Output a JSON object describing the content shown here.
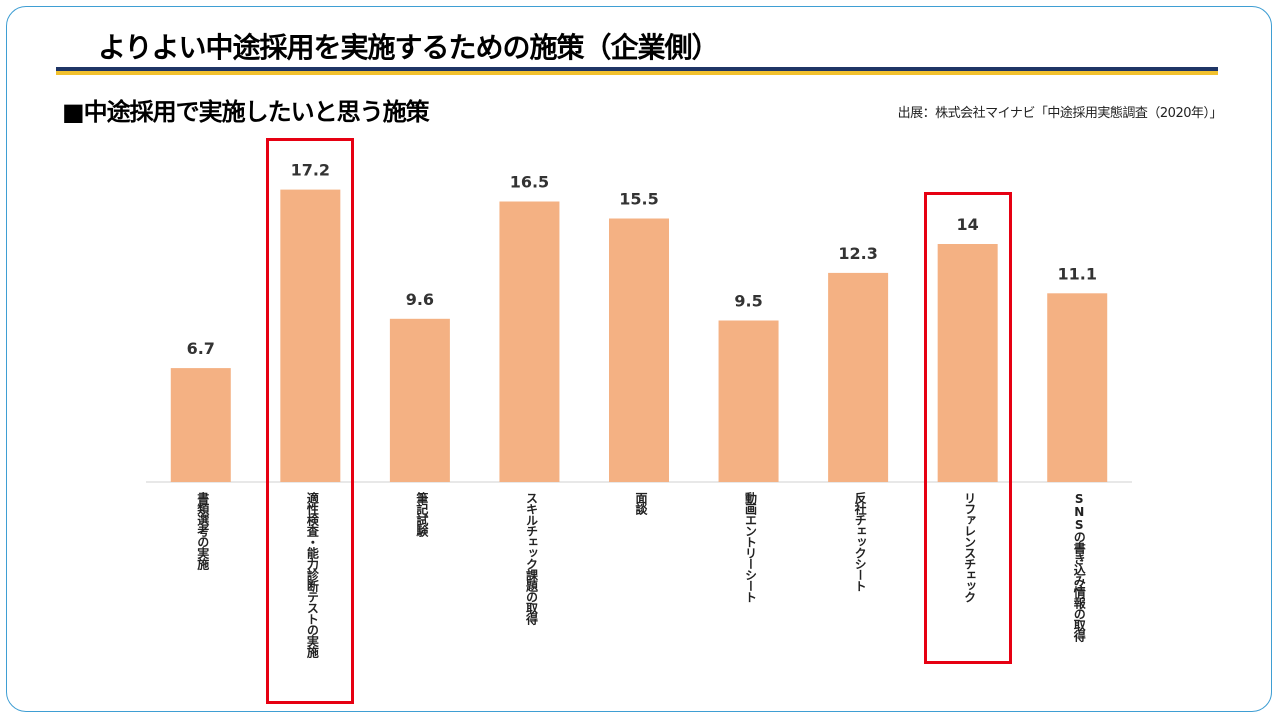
{
  "slide": {
    "title": "よりよい中途採用を実施するための施策（企業側）",
    "section_heading": "■中途採用で実施したいと思う施策",
    "source": "出展：株式会社マイナビ「中途採用実態調査（2020年）」"
  },
  "colors": {
    "bar": "#f4b183",
    "highlight": "#e60012",
    "rule_navy": "#1f3566",
    "rule_gold": "#f2c12e",
    "frame": "#3f9ed3"
  },
  "chart_data": {
    "type": "bar",
    "title": "",
    "xlabel": "",
    "ylabel": "",
    "ylim": [
      0,
      20
    ],
    "grid": false,
    "categories": [
      "書類選考の実施",
      "適性検査・能力診断テストの実施",
      "筆記試験",
      "スキルチェック課題の取得",
      "面談",
      "動画エントリーシート",
      "反社チェックシート",
      "リファレンスチェック",
      "SNSの書き込み情報の取得"
    ],
    "values": [
      6.7,
      17.2,
      9.6,
      16.5,
      15.5,
      9.5,
      12.3,
      14,
      11.1
    ],
    "value_labels": [
      "6.7",
      "17.2",
      "9.6",
      "16.5",
      "15.5",
      "9.5",
      "12.3",
      "14",
      "11.1"
    ],
    "highlighted_categories": [
      "適性検査・能力診断テストの実施",
      "リファレンスチェック"
    ]
  }
}
